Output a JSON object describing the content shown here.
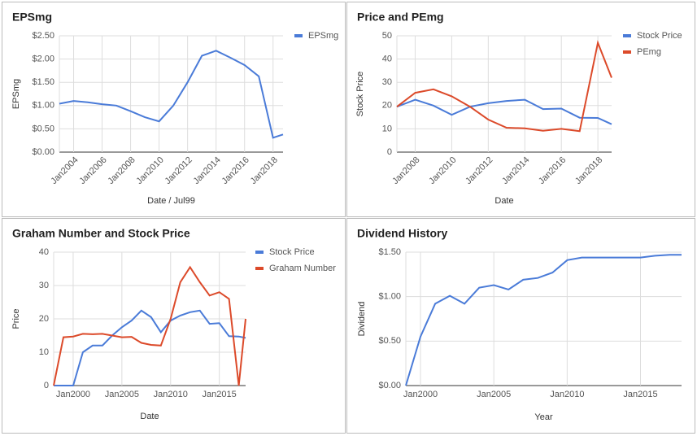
{
  "chart_data": [
    {
      "type": "line",
      "title": "EPSmg",
      "x_label": "Date / Jul99",
      "y_label": "EPSmg",
      "x": [
        2003,
        2004,
        2005,
        2006,
        2007,
        2008,
        2009,
        2010,
        2011,
        2012,
        2013,
        2014,
        2015,
        2016,
        2017,
        2018,
        2018.7
      ],
      "series": [
        {
          "name": "EPSmg",
          "color": "#4a7bd8",
          "values": [
            1.04,
            1.1,
            1.07,
            1.03,
            1.0,
            0.88,
            0.75,
            0.66,
            1.0,
            1.5,
            2.07,
            2.18,
            2.03,
            1.87,
            1.63,
            0.31,
            0.38
          ]
        }
      ],
      "xlim": [
        2003,
        2018.7
      ],
      "xticks": [
        {
          "value": 2004,
          "label": "Jan2004"
        },
        {
          "value": 2006,
          "label": "Jan2006"
        },
        {
          "value": 2008,
          "label": "Jan2008"
        },
        {
          "value": 2010,
          "label": "Jan2010"
        },
        {
          "value": 2012,
          "label": "Jan2012"
        },
        {
          "value": 2014,
          "label": "Jan2014"
        },
        {
          "value": 2016,
          "label": "Jan2016"
        },
        {
          "value": 2018,
          "label": "Jan2018"
        }
      ],
      "ylim": [
        0,
        2.5
      ],
      "yticks": [
        {
          "value": 0,
          "label": "$0.00"
        },
        {
          "value": 0.5,
          "label": "$0.50"
        },
        {
          "value": 1,
          "label": "$1.00"
        },
        {
          "value": 1.5,
          "label": "$1.50"
        },
        {
          "value": 2,
          "label": "$2.00"
        },
        {
          "value": 2.5,
          "label": "$2.50"
        }
      ],
      "grid": true,
      "legend": "right"
    },
    {
      "type": "line",
      "title": "Price and PEmg",
      "x_label": "Date",
      "y_label": "Stock Price",
      "x": [
        2007,
        2008,
        2009,
        2010,
        2011,
        2012,
        2013,
        2014,
        2015,
        2016,
        2017,
        2018,
        2018.75
      ],
      "series": [
        {
          "name": "Stock Price",
          "color": "#4a7bd8",
          "values": [
            19.5,
            22.5,
            20,
            16,
            19.5,
            21,
            22,
            22.5,
            18.5,
            18.7,
            14.8,
            14.7,
            12
          ]
        },
        {
          "name": "PEmg",
          "color": "#dc4a2a",
          "values": [
            19.5,
            25.5,
            27,
            24,
            19.5,
            14,
            10.5,
            10.2,
            9.2,
            10,
            9,
            47,
            32
          ]
        }
      ],
      "xlim": [
        2007,
        2018.75
      ],
      "xticks": [
        {
          "value": 2008,
          "label": "Jan2008"
        },
        {
          "value": 2010,
          "label": "Jan2010"
        },
        {
          "value": 2012,
          "label": "Jan2012"
        },
        {
          "value": 2014,
          "label": "Jan2014"
        },
        {
          "value": 2016,
          "label": "Jan2016"
        },
        {
          "value": 2018,
          "label": "Jan2018"
        }
      ],
      "ylim": [
        0,
        50
      ],
      "yticks": [
        0,
        10,
        20,
        30,
        40,
        50
      ],
      "grid": true,
      "legend": "right"
    },
    {
      "type": "line",
      "title": "Graham Number and Stock Price",
      "x_label": "Date",
      "y_label": "Price",
      "x": [
        1998,
        1999,
        2000,
        2001,
        2002,
        2003,
        2004,
        2005,
        2006,
        2007,
        2008,
        2009,
        2010,
        2011,
        2012,
        2013,
        2014,
        2015,
        2016,
        2017,
        2017.7
      ],
      "series": [
        {
          "name": "Stock Price",
          "color": "#4a7bd8",
          "values": [
            0,
            0,
            0,
            10,
            12,
            12,
            15,
            17.5,
            19.5,
            22.5,
            20.5,
            16,
            19.5,
            21,
            22,
            22.5,
            18.5,
            18.7,
            14.8,
            14.7,
            14.3
          ]
        },
        {
          "name": "Graham Number",
          "color": "#dc4a2a",
          "values": [
            0,
            14.5,
            14.7,
            15.5,
            15.4,
            15.5,
            15,
            14.5,
            14.6,
            12.8,
            12.2,
            12,
            20,
            31,
            35.5,
            31,
            27,
            28,
            26,
            0,
            20
          ]
        }
      ],
      "xlim": [
        1998,
        2017.7
      ],
      "xticks": [
        {
          "value": 2000,
          "label": "Jan2000"
        },
        {
          "value": 2005,
          "label": "Jan2005"
        },
        {
          "value": 2010,
          "label": "Jan2010"
        },
        {
          "value": 2015,
          "label": "Jan2015"
        }
      ],
      "ylim": [
        0,
        40
      ],
      "yticks": [
        0,
        10,
        20,
        30,
        40
      ],
      "grid": true,
      "legend": "right"
    },
    {
      "type": "line",
      "title": "Dividend History",
      "x_label": "Year",
      "y_label": "Dividend",
      "x": [
        1999,
        2000,
        2001,
        2002,
        2003,
        2004,
        2005,
        2006,
        2007,
        2008,
        2009,
        2010,
        2011,
        2012,
        2013,
        2014,
        2015,
        2016,
        2017,
        2017.8
      ],
      "series": [
        {
          "color": "#4a7bd8",
          "values": [
            0,
            0.55,
            0.92,
            1.01,
            0.92,
            1.1,
            1.13,
            1.08,
            1.19,
            1.21,
            1.27,
            1.41,
            1.44,
            1.44,
            1.44,
            1.44,
            1.44,
            1.46,
            1.47,
            1.47
          ]
        }
      ],
      "xlim": [
        1999,
        2017.8
      ],
      "xticks": [
        {
          "value": 2000,
          "label": "Jan2000"
        },
        {
          "value": 2005,
          "label": "Jan2005"
        },
        {
          "value": 2010,
          "label": "Jan2010"
        },
        {
          "value": 2015,
          "label": "Jan2015"
        }
      ],
      "ylim": [
        0,
        1.5
      ],
      "yticks": [
        {
          "value": 0,
          "label": "$0.00"
        },
        {
          "value": 0.5,
          "label": "$0.50"
        },
        {
          "value": 1,
          "label": "$1.00"
        },
        {
          "value": 1.5,
          "label": "$1.50"
        }
      ],
      "grid": true
    }
  ]
}
